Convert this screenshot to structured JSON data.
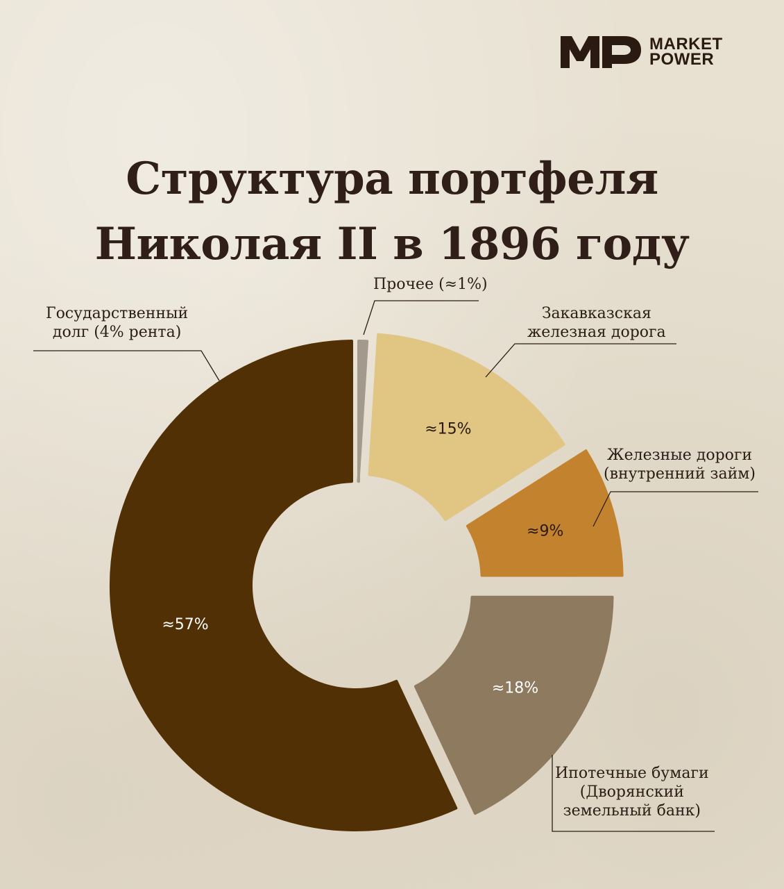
{
  "brand": {
    "mark": "MP",
    "line1": "MARKET",
    "line2": "POWER"
  },
  "title": {
    "line1": "Структура портфеля",
    "line2": "Николая II в 1896 году"
  },
  "colors": {
    "background": "#e8e1d2",
    "text": "#2f1f18",
    "gov_debt": "#523005",
    "mortgage": "#8d7a5f",
    "railways_internal": "#c3822e",
    "transcaucasian": "#e0c583",
    "other": "#a3998d"
  },
  "chart_data": {
    "type": "pie",
    "variant": "donut",
    "start_angle_deg": 0,
    "direction": "clockwise",
    "slices": [
      {
        "key": "other",
        "label_lines": [
          "Прочее (≈1%)"
        ],
        "value": 1,
        "value_label": "",
        "color": "#a3998d"
      },
      {
        "key": "transcaucasian",
        "label_lines": [
          "Закавказская",
          "железная дорога"
        ],
        "value": 15,
        "value_label": "≈15%",
        "color": "#e0c583"
      },
      {
        "key": "railways_internal",
        "label_lines": [
          "Железные дороги",
          "(внутренний займ)"
        ],
        "value": 9,
        "value_label": "≈9%",
        "color": "#c3822e"
      },
      {
        "key": "mortgage",
        "label_lines": [
          "Ипотечные бумаги",
          "(Дворянский",
          "земельный банк)"
        ],
        "value": 18,
        "value_label": "≈18%",
        "color": "#8d7a5f"
      },
      {
        "key": "gov_debt",
        "label_lines": [
          "Государственный",
          "долг (4% рента)"
        ],
        "value": 57,
        "value_label": "≈57%",
        "color": "#523005"
      }
    ]
  }
}
